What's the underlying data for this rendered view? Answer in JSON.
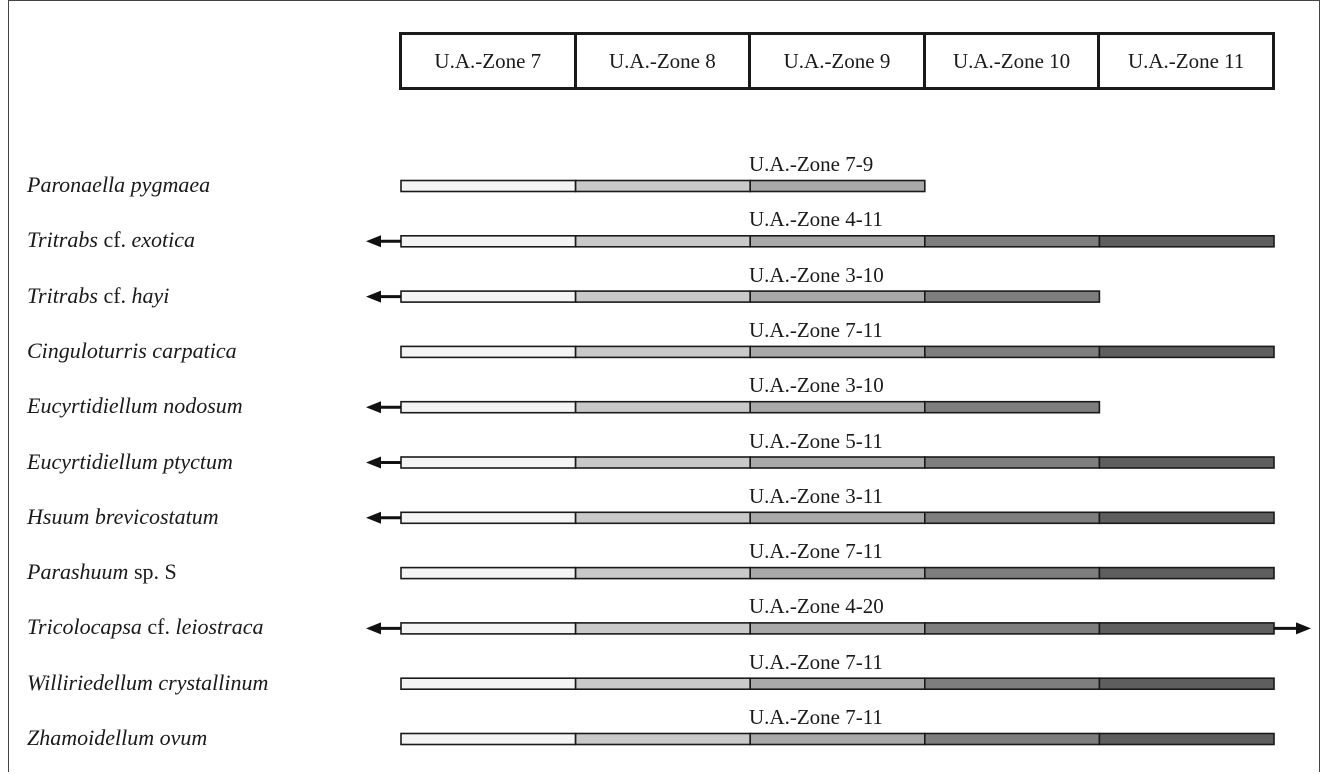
{
  "zones": [
    "U.A.-Zone 7",
    "U.A.-Zone 8",
    "U.A.-Zone 9",
    "U.A.-Zone 10",
    "U.A.-Zone 11"
  ],
  "zone_fill_colors": [
    "#f4f4f4",
    "#c9c9c9",
    "#a9a9a9",
    "#7e7e7e",
    "#5e5e5e"
  ],
  "species": [
    {
      "italic": "Paronaella pygmaea",
      "suffix": "",
      "italic2": "",
      "range_label": "U.A.-Zone 7-9",
      "from_zone": 7,
      "to_zone": 9,
      "extends_older": false,
      "extends_younger": false
    },
    {
      "italic": "Tritrabs",
      "suffix": " cf. ",
      "italic2": "exotica",
      "range_label": "U.A.-Zone 4-11",
      "from_zone": 7,
      "to_zone": 11,
      "extends_older": true,
      "extends_younger": false
    },
    {
      "italic": "Tritrabs",
      "suffix": " cf. ",
      "italic2": "hayi",
      "range_label": "U.A.-Zone 3-10",
      "from_zone": 7,
      "to_zone": 10,
      "extends_older": true,
      "extends_younger": false
    },
    {
      "italic": "Cinguloturris carpatica",
      "suffix": "",
      "italic2": "",
      "range_label": "U.A.-Zone 7-11",
      "from_zone": 7,
      "to_zone": 11,
      "extends_older": false,
      "extends_younger": false
    },
    {
      "italic": "Eucyrtidiellum nodosum",
      "suffix": "",
      "italic2": "",
      "range_label": "U.A.-Zone 3-10",
      "from_zone": 7,
      "to_zone": 10,
      "extends_older": true,
      "extends_younger": false
    },
    {
      "italic": "Eucyrtidiellum ptyctum",
      "suffix": "",
      "italic2": "",
      "range_label": "U.A.-Zone 5-11",
      "from_zone": 7,
      "to_zone": 11,
      "extends_older": true,
      "extends_younger": false
    },
    {
      "italic": "Hsuum brevicostatum",
      "suffix": "",
      "italic2": "",
      "range_label": "U.A.-Zone 3-11",
      "from_zone": 7,
      "to_zone": 11,
      "extends_older": true,
      "extends_younger": false
    },
    {
      "italic": "Parashuum",
      "suffix": " sp. S",
      "italic2": "",
      "range_label": "U.A.-Zone 7-11",
      "from_zone": 7,
      "to_zone": 11,
      "extends_older": false,
      "extends_younger": false
    },
    {
      "italic": "Tricolocapsa",
      "suffix": " cf. ",
      "italic2": "leiostraca",
      "range_label": "U.A.-Zone 4-20",
      "from_zone": 7,
      "to_zone": 11,
      "extends_older": true,
      "extends_younger": true
    },
    {
      "italic": "Williriedellum crystallinum",
      "suffix": "",
      "italic2": "",
      "range_label": "U.A.-Zone 7-11",
      "from_zone": 7,
      "to_zone": 11,
      "extends_older": false,
      "extends_younger": false
    },
    {
      "italic": "Zhamoidellum ovum",
      "suffix": "",
      "italic2": "",
      "range_label": "U.A.-Zone 7-11",
      "from_zone": 7,
      "to_zone": 11,
      "extends_older": false,
      "extends_younger": false
    }
  ]
}
